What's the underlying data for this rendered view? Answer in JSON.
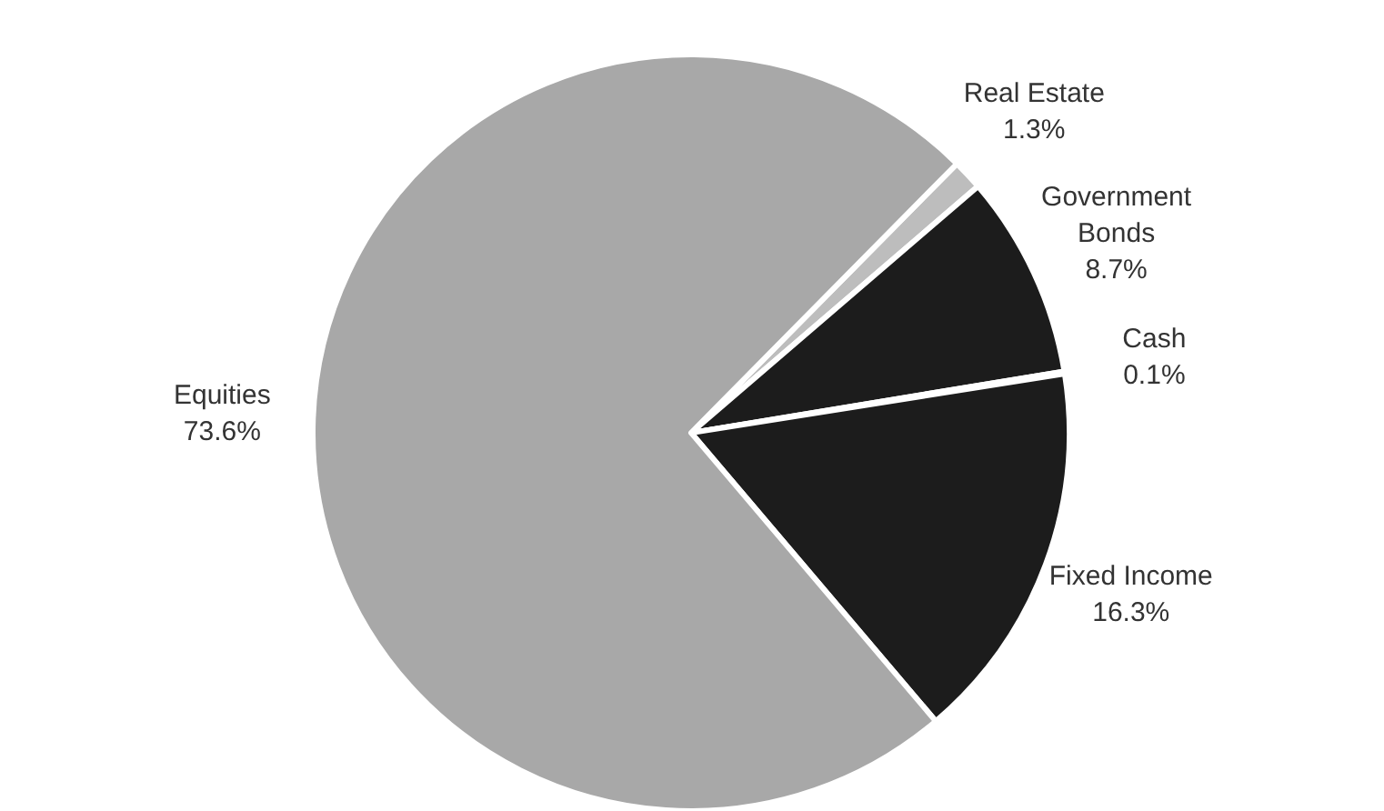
{
  "chart_data": {
    "type": "pie",
    "categories": [
      "Real Estate",
      "Government Bonds",
      "Cash",
      "Fixed Income",
      "Equities"
    ],
    "values": [
      1.3,
      8.7,
      0.1,
      16.3,
      73.6
    ],
    "colors": [
      "#bdbdbd",
      "#1c1c1c",
      "#1c1c1c",
      "#1c1c1c",
      "#a8a8a8"
    ],
    "value_labels": [
      "1.3%",
      "8.7%",
      "0.1%",
      "16.3%",
      "73.6%"
    ]
  }
}
